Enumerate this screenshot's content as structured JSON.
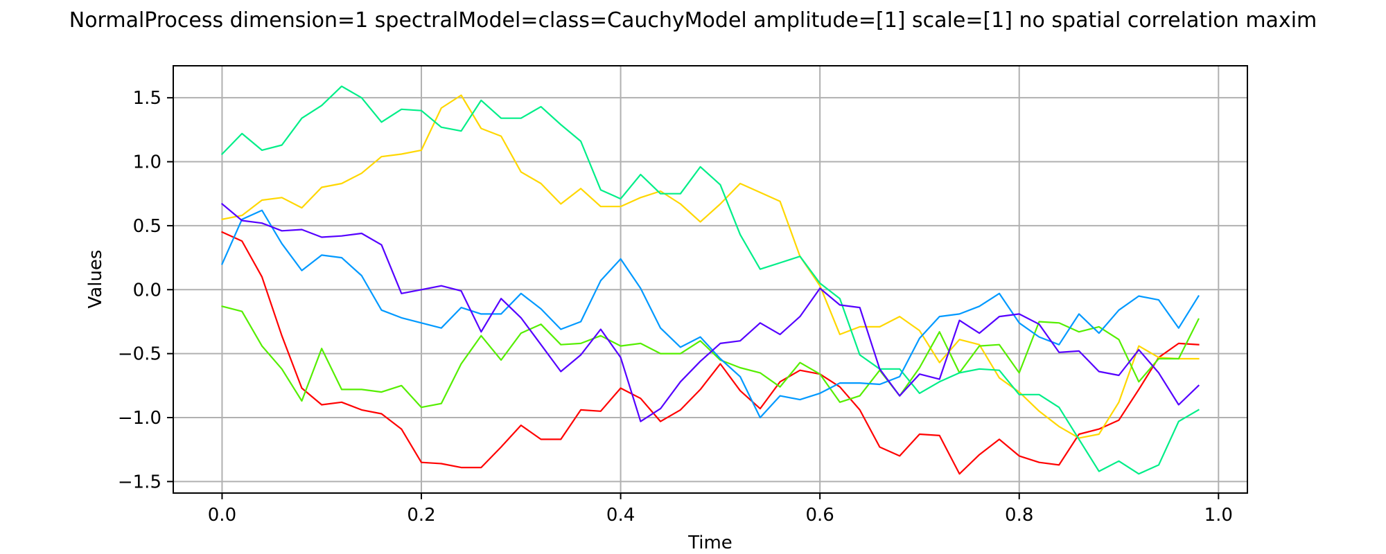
{
  "chart_data": {
    "type": "line",
    "title": "NormalProcess dimension=1 spectralModel=class=CauchyModel amplitude=[1] scale=[1] no spatial correlation maxim",
    "xlabel": "Time",
    "ylabel": "Values",
    "xlim": [
      -0.049,
      1.029
    ],
    "ylim": [
      -1.59,
      1.75
    ],
    "xticks": [
      0.0,
      0.2,
      0.4,
      0.6,
      0.8,
      1.0
    ],
    "xtick_labels": [
      "0.0",
      "0.2",
      "0.4",
      "0.6",
      "0.8",
      "1.0"
    ],
    "yticks": [
      1.5,
      1.0,
      0.5,
      0.0,
      -0.5,
      -1.0,
      -1.5
    ],
    "ytick_labels": [
      "1.5",
      "1.0",
      "0.5",
      "0.0",
      "−0.5",
      "−1.0",
      "−1.5"
    ],
    "grid": true,
    "legend": "none",
    "x": [
      0.0,
      0.02,
      0.04,
      0.06,
      0.08,
      0.1,
      0.12,
      0.14,
      0.16,
      0.18,
      0.2,
      0.22,
      0.24,
      0.26,
      0.28,
      0.3,
      0.32,
      0.34,
      0.36,
      0.38,
      0.4,
      0.42,
      0.44,
      0.46,
      0.48,
      0.5,
      0.52,
      0.54,
      0.56,
      0.58,
      0.6,
      0.62,
      0.64,
      0.66,
      0.68,
      0.7,
      0.72,
      0.74,
      0.76,
      0.78,
      0.8,
      0.82,
      0.84,
      0.86,
      0.88,
      0.9,
      0.92,
      0.94,
      0.96,
      0.98
    ],
    "series": [
      {
        "color": "#ff0000",
        "values": [
          0.45,
          0.38,
          0.1,
          -0.36,
          -0.77,
          -0.9,
          -0.88,
          -0.94,
          -0.97,
          -1.09,
          -1.35,
          -1.36,
          -1.39,
          -1.39,
          -1.23,
          -1.06,
          -1.17,
          -1.17,
          -0.94,
          -0.95,
          -0.77,
          -0.85,
          -1.03,
          -0.94,
          -0.78,
          -0.58,
          -0.79,
          -0.93,
          -0.72,
          -0.63,
          -0.66,
          -0.76,
          -0.94,
          -1.23,
          -1.3,
          -1.13,
          -1.14,
          -1.44,
          -1.29,
          -1.17,
          -1.3,
          -1.35,
          -1.37,
          -1.13,
          -1.09,
          -1.02,
          -0.78,
          -0.53,
          -0.42,
          -0.43
        ]
      },
      {
        "color": "#ffd700",
        "values": [
          0.55,
          0.58,
          0.7,
          0.72,
          0.64,
          0.8,
          0.83,
          0.91,
          1.04,
          1.06,
          1.09,
          1.42,
          1.52,
          1.26,
          1.2,
          0.92,
          0.83,
          0.67,
          0.79,
          0.65,
          0.65,
          0.72,
          0.77,
          0.67,
          0.53,
          0.67,
          0.83,
          0.76,
          0.69,
          0.26,
          0.03,
          -0.35,
          -0.29,
          -0.29,
          -0.21,
          -0.32,
          -0.57,
          -0.39,
          -0.43,
          -0.69,
          -0.8,
          -0.95,
          -1.07,
          -1.16,
          -1.13,
          -0.88,
          -0.44,
          -0.53,
          -0.54,
          -0.54
        ]
      },
      {
        "color": "#55ee00",
        "values": [
          -0.13,
          -0.17,
          -0.44,
          -0.62,
          -0.87,
          -0.46,
          -0.78,
          -0.78,
          -0.8,
          -0.75,
          -0.92,
          -0.89,
          -0.58,
          -0.36,
          -0.55,
          -0.34,
          -0.27,
          -0.43,
          -0.42,
          -0.36,
          -0.44,
          -0.42,
          -0.5,
          -0.5,
          -0.4,
          -0.55,
          -0.61,
          -0.65,
          -0.76,
          -0.57,
          -0.66,
          -0.88,
          -0.83,
          -0.63,
          -0.83,
          -0.61,
          -0.33,
          -0.65,
          -0.44,
          -0.43,
          -0.65,
          -0.25,
          -0.26,
          -0.33,
          -0.29,
          -0.39,
          -0.72,
          -0.54,
          -0.54,
          -0.23
        ]
      },
      {
        "color": "#00ee88",
        "values": [
          1.06,
          1.22,
          1.09,
          1.13,
          1.34,
          1.44,
          1.59,
          1.5,
          1.31,
          1.41,
          1.4,
          1.27,
          1.24,
          1.48,
          1.34,
          1.34,
          1.43,
          1.29,
          1.16,
          0.78,
          0.71,
          0.9,
          0.75,
          0.75,
          0.96,
          0.82,
          0.43,
          0.16,
          0.21,
          0.26,
          0.05,
          -0.07,
          -0.51,
          -0.62,
          -0.62,
          -0.81,
          -0.72,
          -0.65,
          -0.62,
          -0.63,
          -0.82,
          -0.82,
          -0.92,
          -1.17,
          -1.42,
          -1.34,
          -1.44,
          -1.37,
          -1.03,
          -0.94
        ]
      },
      {
        "color": "#0099ff",
        "values": [
          0.2,
          0.55,
          0.62,
          0.36,
          0.15,
          0.27,
          0.25,
          0.11,
          -0.16,
          -0.22,
          -0.26,
          -0.3,
          -0.14,
          -0.19,
          -0.19,
          -0.03,
          -0.15,
          -0.31,
          -0.25,
          0.07,
          0.24,
          0.01,
          -0.3,
          -0.45,
          -0.37,
          -0.54,
          -0.68,
          -1.0,
          -0.83,
          -0.86,
          -0.81,
          -0.73,
          -0.73,
          -0.74,
          -0.68,
          -0.38,
          -0.21,
          -0.19,
          -0.13,
          -0.03,
          -0.26,
          -0.37,
          -0.43,
          -0.19,
          -0.34,
          -0.16,
          -0.05,
          -0.08,
          -0.3,
          -0.05
        ]
      },
      {
        "color": "#5500ff",
        "values": [
          0.67,
          0.54,
          0.52,
          0.46,
          0.47,
          0.41,
          0.42,
          0.44,
          0.35,
          -0.03,
          0.0,
          0.03,
          -0.01,
          -0.33,
          -0.07,
          -0.22,
          -0.43,
          -0.64,
          -0.51,
          -0.31,
          -0.53,
          -1.03,
          -0.93,
          -0.72,
          -0.56,
          -0.42,
          -0.4,
          -0.26,
          -0.35,
          -0.21,
          0.01,
          -0.12,
          -0.14,
          -0.62,
          -0.83,
          -0.66,
          -0.7,
          -0.24,
          -0.34,
          -0.21,
          -0.19,
          -0.27,
          -0.49,
          -0.48,
          -0.64,
          -0.67,
          -0.47,
          -0.65,
          -0.9,
          -0.75
        ]
      }
    ]
  }
}
